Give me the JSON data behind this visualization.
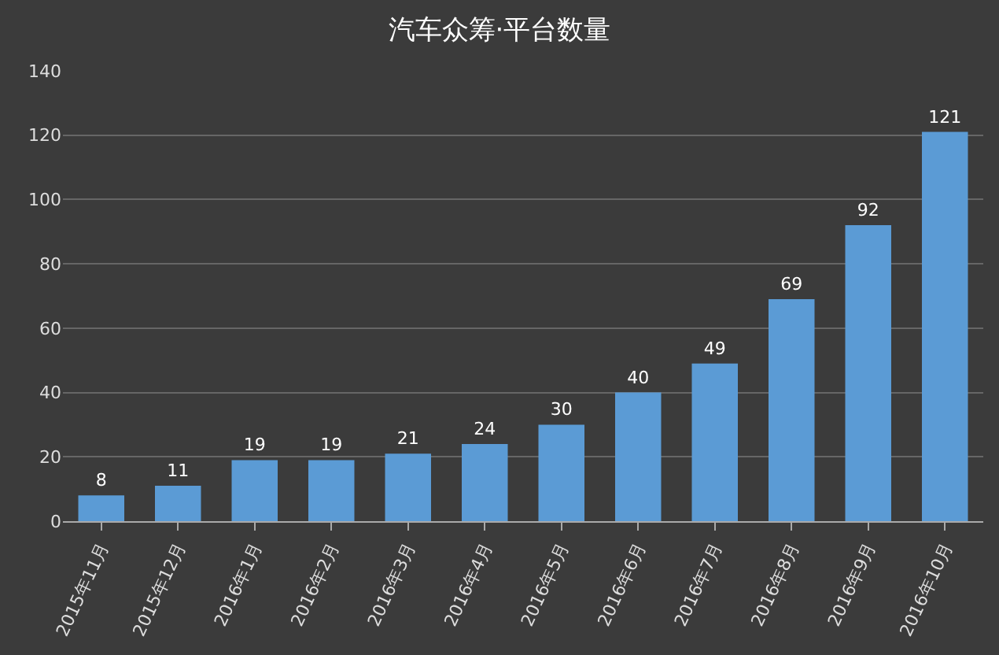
{
  "chart_data": {
    "type": "bar",
    "title": "汽车众筹·平台数量",
    "categories": [
      "2015年11月",
      "2015年12月",
      "2016年1月",
      "2016年2月",
      "2016年3月",
      "2016年4月",
      "2016年5月",
      "2016年6月",
      "2016年7月",
      "2016年8月",
      "2016年9月",
      "2016年10月"
    ],
    "values": [
      8,
      11,
      19,
      19,
      21,
      24,
      30,
      40,
      49,
      69,
      92,
      121
    ],
    "color": "#5b9bd5",
    "ylim": [
      0,
      140
    ],
    "yticks": [
      0,
      20,
      40,
      60,
      80,
      100,
      120,
      140
    ],
    "grid": "y",
    "data_labels": true
  }
}
